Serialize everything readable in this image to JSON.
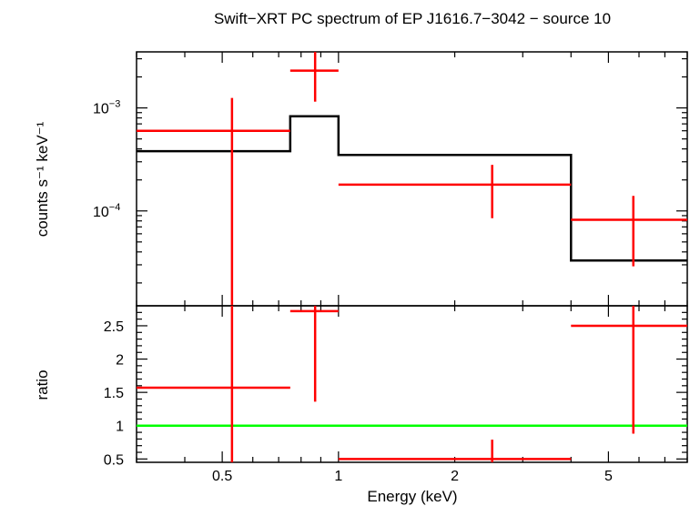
{
  "chart_data": [
    {
      "type": "scatter",
      "title": "Swift−XRT PC spectrum of EP J1616.7−3042 − source 10",
      "xlabel": "",
      "ylabel": "counts s⁻¹ keV⁻¹",
      "xscale": "log",
      "yscale": "log",
      "xlim": [
        0.3,
        8.0
      ],
      "ylim": [
        1.2e-05,
        0.0035
      ],
      "ytick_labels": [
        {
          "value": 0.001,
          "base": "10",
          "exp": "−3"
        },
        {
          "value": 0.0001,
          "base": "10",
          "exp": "−4"
        }
      ],
      "series": [
        {
          "kind": "data",
          "color": "#ff0000",
          "points": [
            {
              "x": 0.53,
              "xlo": 0.3,
              "xhi": 0.75,
              "y": 0.0006,
              "ylo": 1.2e-05,
              "yhi": 0.00125
            },
            {
              "x": 0.87,
              "xlo": 0.75,
              "xhi": 1.0,
              "y": 0.0023,
              "ylo": 0.00115,
              "yhi": 0.0035
            },
            {
              "x": 2.5,
              "xlo": 1.0,
              "xhi": 4.0,
              "y": 0.00018,
              "ylo": 8.5e-05,
              "yhi": 0.00028
            },
            {
              "x": 5.8,
              "xlo": 4.0,
              "xhi": 8.0,
              "y": 8.2e-05,
              "ylo": 2.9e-05,
              "yhi": 0.00014
            }
          ]
        },
        {
          "kind": "model",
          "color": "#000000",
          "steps": [
            {
              "x0": 0.3,
              "x1": 0.75,
              "y": 0.00038
            },
            {
              "x0": 0.75,
              "x1": 1.0,
              "y": 0.00083
            },
            {
              "x0": 1.0,
              "x1": 4.0,
              "y": 0.00035
            },
            {
              "x0": 4.0,
              "x1": 8.0,
              "y": 3.3e-05
            }
          ]
        }
      ]
    },
    {
      "type": "scatter",
      "title": "",
      "xlabel": "Energy (keV)",
      "ylabel": "ratio",
      "xscale": "log",
      "yscale": "linear",
      "xlim": [
        0.3,
        8.0
      ],
      "ylim": [
        0.45,
        2.8
      ],
      "yticks": [
        0.5,
        1,
        1.5,
        2,
        2.5
      ],
      "ytick_labels": [
        "0.5",
        "1",
        "1.5",
        "2",
        "2.5"
      ],
      "xticks": [
        0.5,
        1,
        2,
        5
      ],
      "xtick_labels": [
        "0.5",
        "1",
        "2",
        "5"
      ],
      "reference_line": {
        "y": 1,
        "color": "#00ff00"
      },
      "series": [
        {
          "kind": "ratio",
          "color": "#ff0000",
          "points": [
            {
              "x": 0.53,
              "xlo": 0.3,
              "xhi": 0.75,
              "y": 1.57,
              "ylo": 0.45,
              "yhi": 2.8
            },
            {
              "x": 0.87,
              "xlo": 0.75,
              "xhi": 1.0,
              "y": 2.72,
              "ylo": 1.36,
              "yhi": 2.8
            },
            {
              "x": 2.5,
              "xlo": 1.0,
              "xhi": 4.0,
              "y": 0.5,
              "ylo": 0.45,
              "yhi": 0.79
            },
            {
              "x": 5.8,
              "xlo": 4.0,
              "xhi": 8.0,
              "y": 2.5,
              "ylo": 0.88,
              "yhi": 2.8
            }
          ]
        }
      ]
    }
  ]
}
